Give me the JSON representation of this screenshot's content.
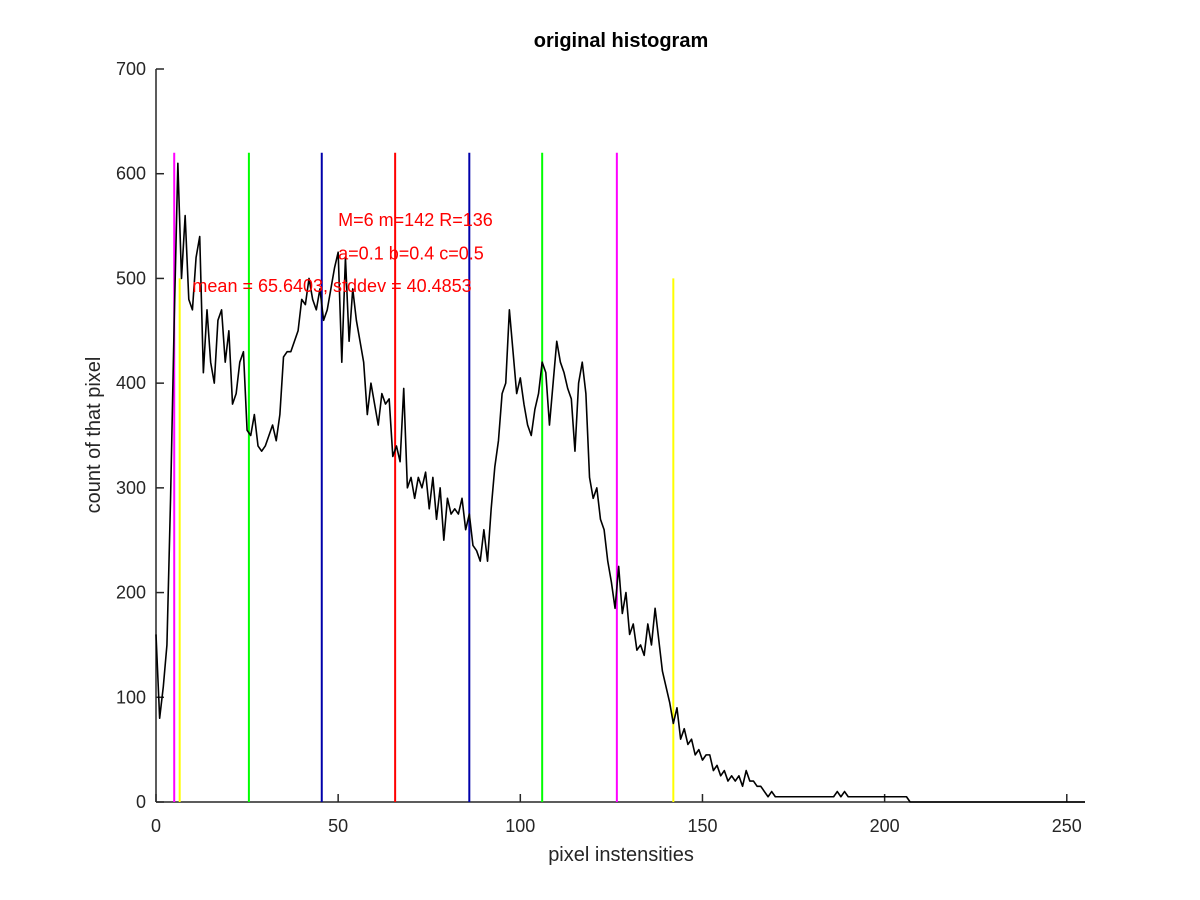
{
  "chart_data": {
    "type": "line",
    "title": "original histogram",
    "xlabel": "pixel instensities",
    "ylabel": "count of that pixel",
    "xlim": [
      0,
      255
    ],
    "ylim": [
      0,
      700
    ],
    "xticks": [
      0,
      50,
      100,
      150,
      200,
      250
    ],
    "yticks": [
      0,
      100,
      200,
      300,
      400,
      500,
      600,
      700
    ],
    "grid": false,
    "series": [
      {
        "color": "#000000",
        "points": [
          [
            0,
            160
          ],
          [
            1,
            80
          ],
          [
            2,
            110
          ],
          [
            3,
            150
          ],
          [
            4,
            290
          ],
          [
            5,
            460
          ],
          [
            6,
            610
          ],
          [
            7,
            500
          ],
          [
            8,
            560
          ],
          [
            9,
            480
          ],
          [
            10,
            470
          ],
          [
            11,
            520
          ],
          [
            12,
            540
          ],
          [
            13,
            410
          ],
          [
            14,
            470
          ],
          [
            15,
            420
          ],
          [
            16,
            400
          ],
          [
            17,
            460
          ],
          [
            18,
            470
          ],
          [
            19,
            420
          ],
          [
            20,
            450
          ],
          [
            21,
            380
          ],
          [
            22,
            390
          ],
          [
            23,
            420
          ],
          [
            24,
            430
          ],
          [
            25,
            355
          ],
          [
            26,
            350
          ],
          [
            27,
            370
          ],
          [
            28,
            340
          ],
          [
            29,
            335
          ],
          [
            30,
            340
          ],
          [
            31,
            350
          ],
          [
            32,
            360
          ],
          [
            33,
            345
          ],
          [
            34,
            370
          ],
          [
            35,
            425
          ],
          [
            36,
            430
          ],
          [
            37,
            430
          ],
          [
            38,
            440
          ],
          [
            39,
            450
          ],
          [
            40,
            480
          ],
          [
            41,
            475
          ],
          [
            42,
            500
          ],
          [
            43,
            480
          ],
          [
            44,
            470
          ],
          [
            45,
            490
          ],
          [
            46,
            460
          ],
          [
            47,
            470
          ],
          [
            48,
            490
          ],
          [
            49,
            510
          ],
          [
            50,
            525
          ],
          [
            51,
            420
          ],
          [
            52,
            520
          ],
          [
            53,
            440
          ],
          [
            54,
            490
          ],
          [
            55,
            460
          ],
          [
            56,
            440
          ],
          [
            57,
            420
          ],
          [
            58,
            370
          ],
          [
            59,
            400
          ],
          [
            60,
            380
          ],
          [
            61,
            360
          ],
          [
            62,
            390
          ],
          [
            63,
            380
          ],
          [
            64,
            385
          ],
          [
            65,
            330
          ],
          [
            66,
            340
          ],
          [
            67,
            325
          ],
          [
            68,
            395
          ],
          [
            69,
            300
          ],
          [
            70,
            310
          ],
          [
            71,
            290
          ],
          [
            72,
            310
          ],
          [
            73,
            300
          ],
          [
            74,
            315
          ],
          [
            75,
            280
          ],
          [
            76,
            310
          ],
          [
            77,
            270
          ],
          [
            78,
            300
          ],
          [
            79,
            250
          ],
          [
            80,
            290
          ],
          [
            81,
            275
          ],
          [
            82,
            280
          ],
          [
            83,
            275
          ],
          [
            84,
            290
          ],
          [
            85,
            260
          ],
          [
            86,
            275
          ],
          [
            87,
            245
          ],
          [
            88,
            240
          ],
          [
            89,
            230
          ],
          [
            90,
            260
          ],
          [
            91,
            230
          ],
          [
            92,
            280
          ],
          [
            93,
            320
          ],
          [
            94,
            345
          ],
          [
            95,
            390
          ],
          [
            96,
            400
          ],
          [
            97,
            470
          ],
          [
            98,
            430
          ],
          [
            99,
            390
          ],
          [
            100,
            405
          ],
          [
            101,
            380
          ],
          [
            102,
            360
          ],
          [
            103,
            350
          ],
          [
            104,
            375
          ],
          [
            105,
            390
          ],
          [
            106,
            420
          ],
          [
            107,
            410
          ],
          [
            108,
            360
          ],
          [
            109,
            400
          ],
          [
            110,
            440
          ],
          [
            111,
            420
          ],
          [
            112,
            410
          ],
          [
            113,
            395
          ],
          [
            114,
            385
          ],
          [
            115,
            335
          ],
          [
            116,
            400
          ],
          [
            117,
            420
          ],
          [
            118,
            390
          ],
          [
            119,
            310
          ],
          [
            120,
            290
          ],
          [
            121,
            300
          ],
          [
            122,
            270
          ],
          [
            123,
            260
          ],
          [
            124,
            230
          ],
          [
            125,
            210
          ],
          [
            126,
            185
          ],
          [
            127,
            225
          ],
          [
            128,
            180
          ],
          [
            129,
            200
          ],
          [
            130,
            160
          ],
          [
            131,
            170
          ],
          [
            132,
            145
          ],
          [
            133,
            150
          ],
          [
            134,
            140
          ],
          [
            135,
            170
          ],
          [
            136,
            150
          ],
          [
            137,
            185
          ],
          [
            138,
            155
          ],
          [
            139,
            125
          ],
          [
            140,
            110
          ],
          [
            141,
            95
          ],
          [
            142,
            75
          ],
          [
            143,
            90
          ],
          [
            144,
            60
          ],
          [
            145,
            70
          ],
          [
            146,
            55
          ],
          [
            147,
            60
          ],
          [
            148,
            45
          ],
          [
            149,
            50
          ],
          [
            150,
            40
          ],
          [
            151,
            45
          ],
          [
            152,
            45
          ],
          [
            153,
            30
          ],
          [
            154,
            35
          ],
          [
            155,
            25
          ],
          [
            156,
            30
          ],
          [
            157,
            20
          ],
          [
            158,
            25
          ],
          [
            159,
            20
          ],
          [
            160,
            25
          ],
          [
            161,
            15
          ],
          [
            162,
            30
          ],
          [
            163,
            20
          ],
          [
            164,
            20
          ],
          [
            165,
            15
          ],
          [
            166,
            15
          ],
          [
            167,
            10
          ],
          [
            168,
            5
          ],
          [
            169,
            10
          ],
          [
            170,
            5
          ],
          [
            171,
            5
          ],
          [
            172,
            5
          ],
          [
            173,
            5
          ],
          [
            174,
            5
          ],
          [
            175,
            5
          ],
          [
            176,
            5
          ],
          [
            177,
            5
          ],
          [
            178,
            5
          ],
          [
            179,
            5
          ],
          [
            180,
            5
          ],
          [
            181,
            5
          ],
          [
            182,
            5
          ],
          [
            183,
            5
          ],
          [
            184,
            5
          ],
          [
            185,
            5
          ],
          [
            186,
            5
          ],
          [
            187,
            10
          ],
          [
            188,
            5
          ],
          [
            189,
            10
          ],
          [
            190,
            5
          ],
          [
            191,
            5
          ],
          [
            192,
            5
          ],
          [
            193,
            5
          ],
          [
            194,
            5
          ],
          [
            195,
            5
          ],
          [
            196,
            5
          ],
          [
            197,
            5
          ],
          [
            198,
            5
          ],
          [
            199,
            5
          ],
          [
            200,
            5
          ],
          [
            201,
            5
          ],
          [
            202,
            5
          ],
          [
            203,
            5
          ],
          [
            204,
            5
          ],
          [
            205,
            5
          ],
          [
            206,
            5
          ],
          [
            207,
            0
          ],
          [
            210,
            0
          ],
          [
            220,
            0
          ],
          [
            230,
            0
          ],
          [
            240,
            0
          ],
          [
            250,
            0
          ],
          [
            255,
            0
          ]
        ]
      }
    ],
    "vlines": [
      {
        "x": 5,
        "color": "#ff00ff",
        "ymax": 620
      },
      {
        "x": 6.5,
        "color": "#ffff00",
        "ymax": 500
      },
      {
        "x": 25.5,
        "color": "#00ff00",
        "ymax": 620
      },
      {
        "x": 45.5,
        "color": "#0000aa",
        "ymax": 620
      },
      {
        "x": 65.64,
        "color": "#ff0000",
        "ymax": 620
      },
      {
        "x": 86,
        "color": "#0000aa",
        "ymax": 620
      },
      {
        "x": 106,
        "color": "#00ff00",
        "ymax": 620
      },
      {
        "x": 126.5,
        "color": "#ff00ff",
        "ymax": 620
      },
      {
        "x": 142,
        "color": "#ffff00",
        "ymax": 500
      }
    ],
    "annotations": [
      {
        "text": "M=6 m=142 R=136",
        "x": 50,
        "y": 550
      },
      {
        "text": "a=0.1 b=0.4 c=0.5",
        "x": 50,
        "y": 518
      },
      {
        "text": "mean = 65.6403, stddev = 40.4853",
        "x": 10,
        "y": 487
      }
    ]
  }
}
